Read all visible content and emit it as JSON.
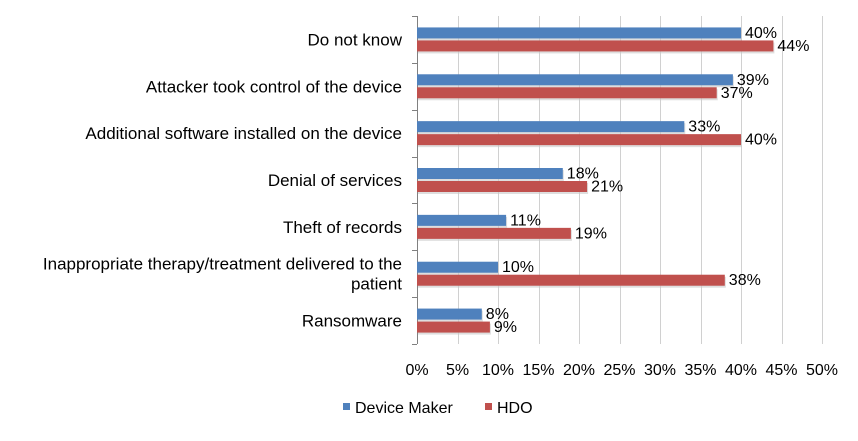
{
  "chart_data": {
    "type": "bar",
    "orientation": "horizontal",
    "categories": [
      [
        "Do not know"
      ],
      [
        "Attacker took control of the device"
      ],
      [
        "Additional software installed on the device"
      ],
      [
        "Denial of services"
      ],
      [
        "Theft of records"
      ],
      [
        "Inappropriate therapy/treatment delivered to the",
        "patient"
      ],
      [
        "Ransomware"
      ]
    ],
    "series": [
      {
        "name": "Device Maker",
        "values": [
          40,
          39,
          33,
          18,
          11,
          10,
          8
        ],
        "labels": [
          "40%",
          "39%",
          "33%",
          "18%",
          "11%",
          "10%",
          "8%"
        ],
        "color": "#4f81bd"
      },
      {
        "name": "HDO",
        "values": [
          44,
          37,
          40,
          21,
          19,
          38,
          9
        ],
        "labels": [
          "44%",
          "37%",
          "40%",
          "21%",
          "19%",
          "38%",
          "9%"
        ],
        "color": "#c0504d"
      }
    ],
    "xlim": [
      0,
      50
    ],
    "xticks": [
      "0%",
      "5%",
      "10%",
      "15%",
      "20%",
      "25%",
      "30%",
      "35%",
      "40%",
      "45%",
      "50%"
    ],
    "grid": true,
    "legend_position": "bottom"
  }
}
